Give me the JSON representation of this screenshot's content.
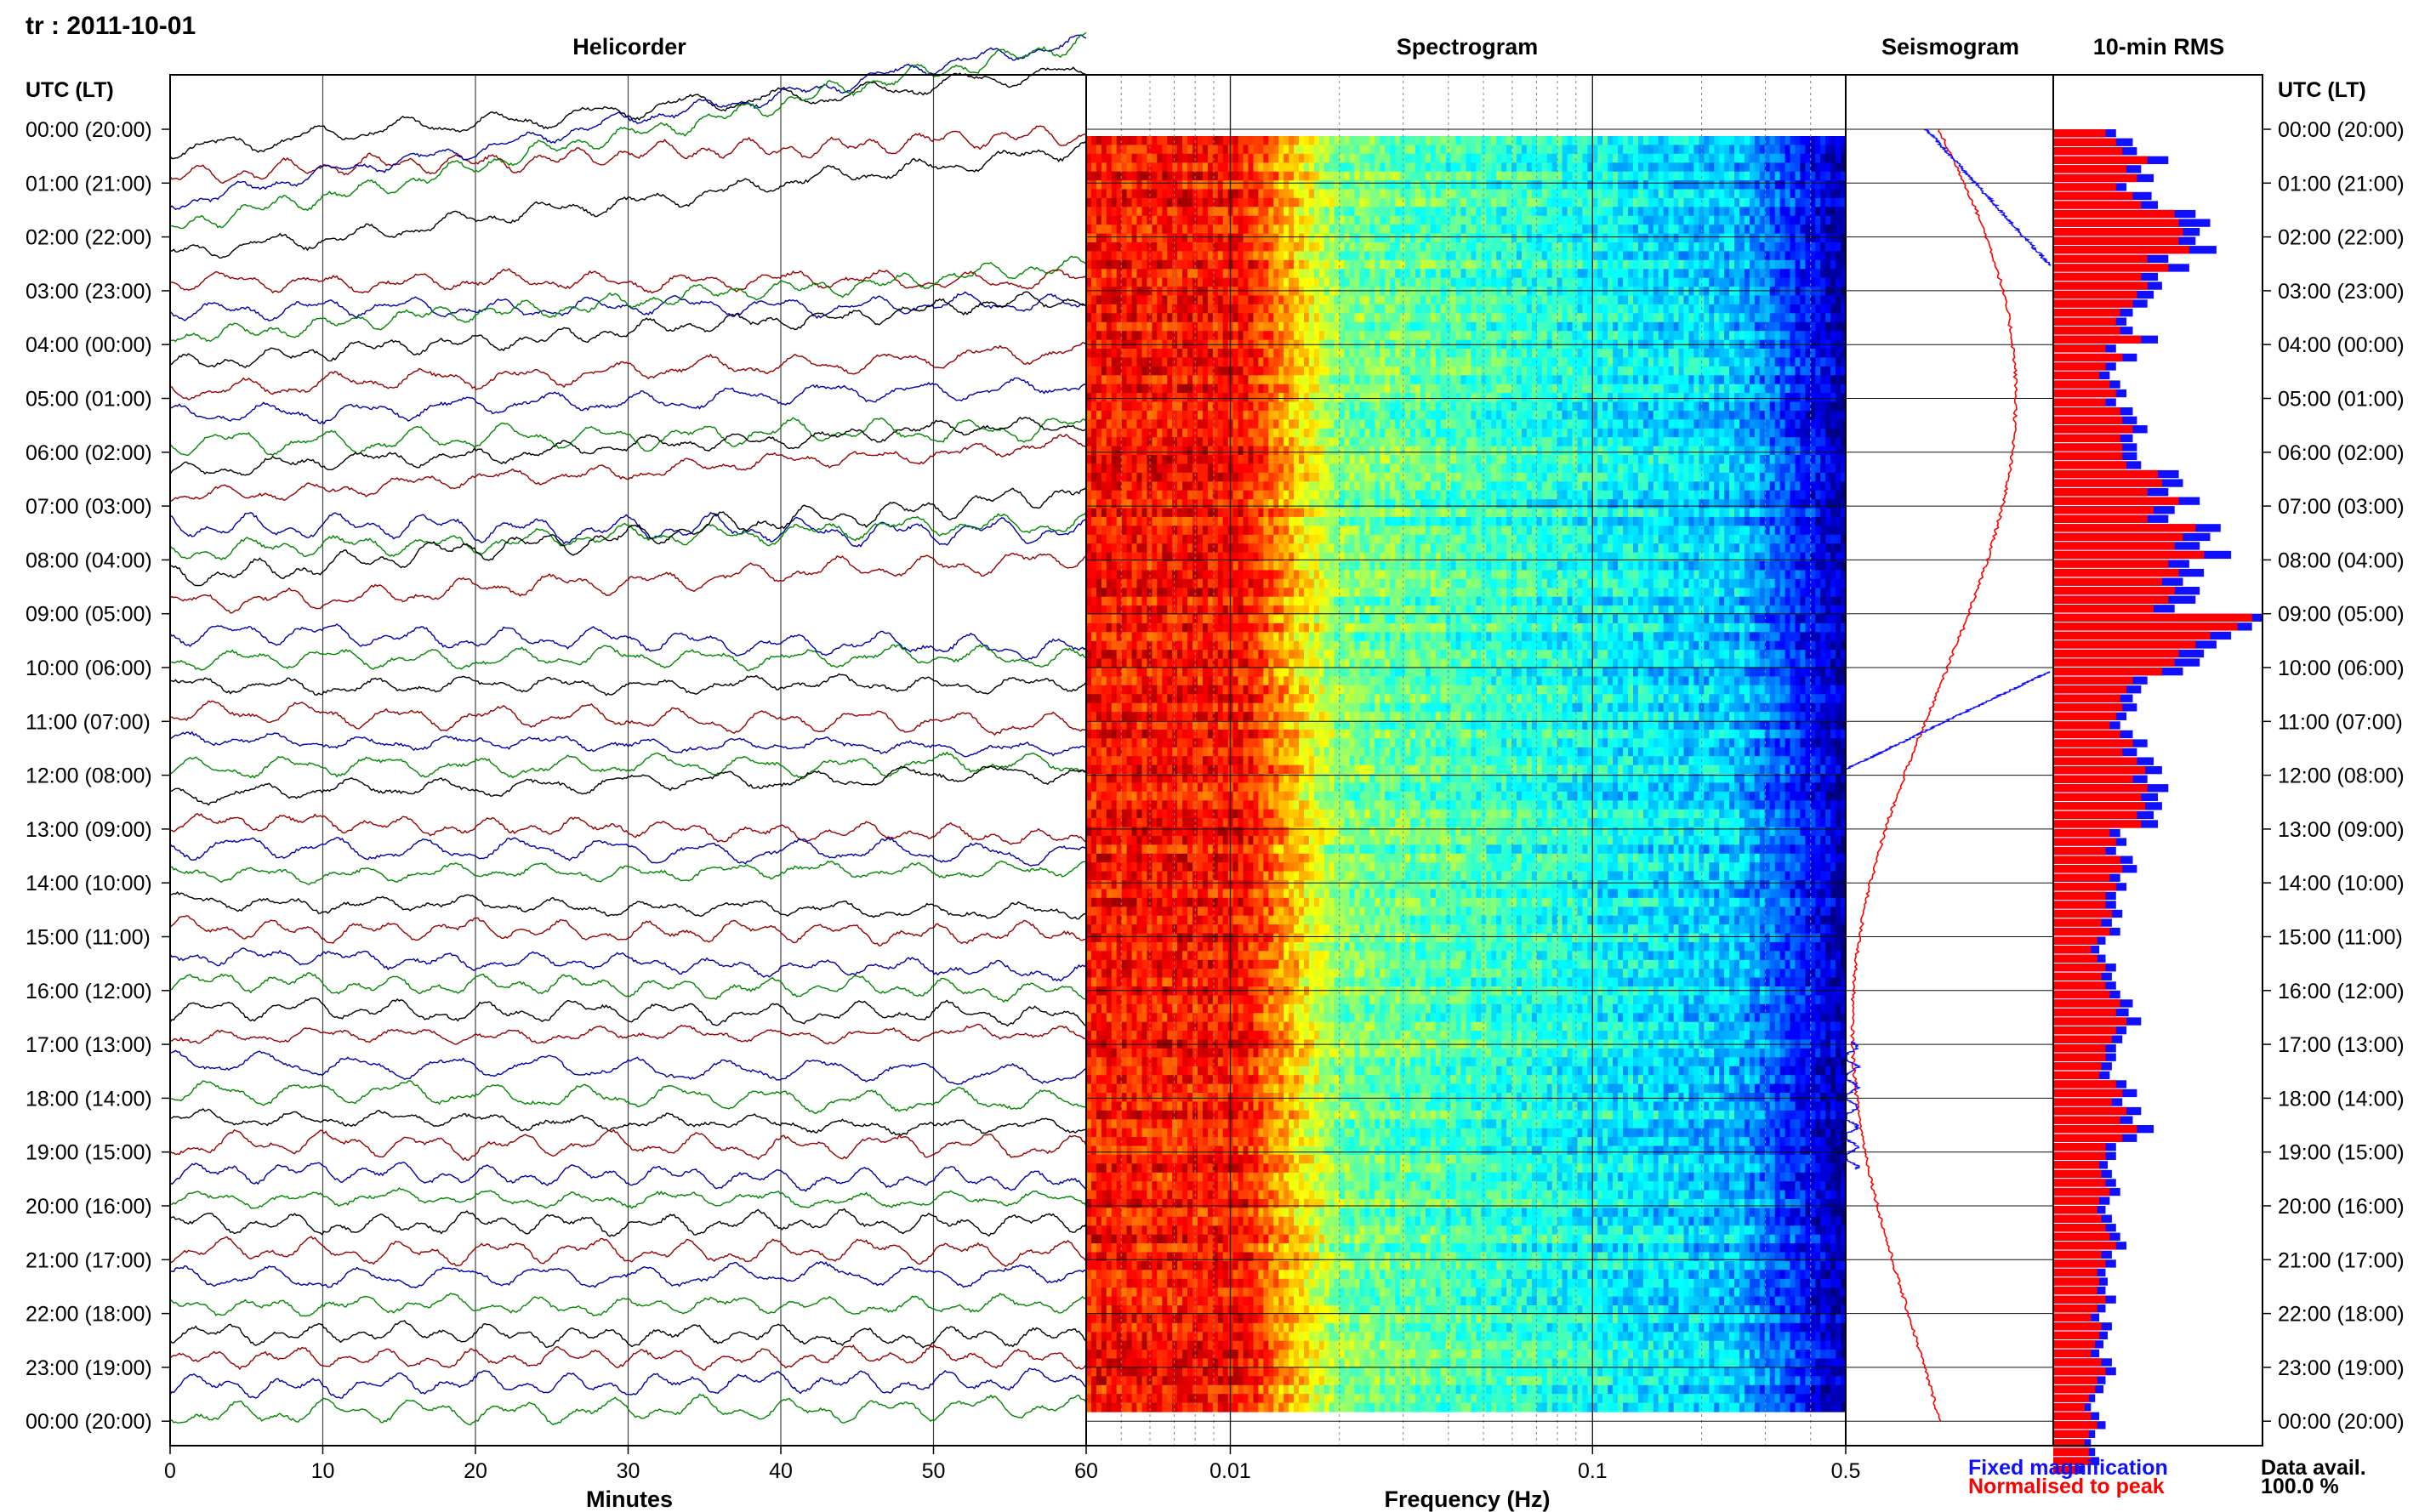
{
  "page_title": "tr : 2011-10-01",
  "axis_time_header_left": "UTC (LT)",
  "axis_time_header_right": "UTC (LT)",
  "panels": {
    "helicorder": "Helicorder",
    "spectrogram": "Spectrogram",
    "seismogram": "Seismogram",
    "rms": "10-min RMS"
  },
  "x_labels": {
    "helicorder": "Minutes",
    "spectrogram": "Frequency (Hz)"
  },
  "legend": {
    "fixed": "Fixed magnification",
    "normalised": "Normalised to peak",
    "fixed_color": "#1010ff",
    "normalised_color": "#ff0000"
  },
  "data_availability": {
    "label": "Data avail.",
    "value": "100.0 %"
  },
  "chart_data": [
    {
      "type": "line",
      "title": "Helicorder",
      "xlabel": "Minutes",
      "xlim": [
        0,
        60
      ],
      "x_ticks": [
        "0",
        "10",
        "20",
        "30",
        "40",
        "50",
        "60"
      ],
      "row_labels": [
        "00:00 (20:00)",
        "01:00 (21:00)",
        "02:00 (22:00)",
        "03:00 (23:00)",
        "04:00 (00:00)",
        "05:00 (01:00)",
        "06:00 (02:00)",
        "07:00 (03:00)",
        "08:00 (04:00)",
        "09:00 (05:00)",
        "10:00 (06:00)",
        "11:00 (07:00)",
        "12:00 (08:00)",
        "13:00 (09:00)",
        "14:00 (10:00)",
        "15:00 (11:00)",
        "16:00 (12:00)",
        "17:00 (13:00)",
        "18:00 (14:00)",
        "19:00 (15:00)",
        "20:00 (16:00)",
        "21:00 (17:00)",
        "22:00 (18:00)",
        "23:00 (19:00)",
        "00:00 (20:00)"
      ],
      "trace_colors": [
        "#000000",
        "#990000",
        "#0000aa",
        "#008800"
      ],
      "trace_drift_rows": [
        1.4,
        0.75,
        3.0,
        3.5,
        2.0,
        0.05,
        0.1,
        1.3,
        1.2,
        0.7,
        0.6,
        0.3,
        0.9,
        1.0,
        -0.15,
        0.55,
        1.6,
        0.9,
        -0.3,
        0.05,
        0.05,
        -0.2,
        -0.15,
        0.05,
        0.4,
        -0.3,
        -0.1,
        0.1,
        -0.2,
        -0.1,
        -0.3,
        -0.15,
        -0.1,
        0.05,
        -0.2,
        -0.25,
        -0.2,
        -0.05,
        -0.2,
        -0.05,
        0.05,
        0.0,
        0.1,
        0.0,
        -0.1,
        0.05,
        0.1,
        0.1
      ]
    },
    {
      "type": "heatmap",
      "title": "Spectrogram",
      "xlabel": "Frequency (Hz)",
      "x_scale": "log",
      "xlim": [
        0.004,
        0.5
      ],
      "x_tick_labels": [
        "0.01",
        "0.1",
        "0.5"
      ],
      "colormap": "jet"
    },
    {
      "type": "line",
      "title": "Seismogram",
      "series": [
        {
          "name": "Fixed magnification",
          "color": "#1010ff",
          "kind": "fixed"
        },
        {
          "name": "Normalised to peak",
          "color": "#ff0000",
          "kind": "normalised"
        }
      ]
    },
    {
      "type": "bar",
      "title": "10-min RMS",
      "orientation": "horizontal",
      "bins_per_hour": 6,
      "series": [
        {
          "name": "Fixed magnification",
          "color": "#1010ff",
          "values": [
            0.3,
            0.38,
            0.4,
            0.55,
            0.42,
            0.48,
            0.35,
            0.47,
            0.5,
            0.68,
            0.75,
            0.7,
            0.68,
            0.78,
            0.55,
            0.65,
            0.5,
            0.52,
            0.48,
            0.45,
            0.38,
            0.35,
            0.38,
            0.5,
            0.3,
            0.4,
            0.3,
            0.27,
            0.32,
            0.35,
            0.3,
            0.38,
            0.4,
            0.45,
            0.38,
            0.4,
            0.4,
            0.42,
            0.6,
            0.62,
            0.55,
            0.7,
            0.58,
            0.55,
            0.8,
            0.75,
            0.7,
            0.85,
            0.65,
            0.72,
            0.62,
            0.7,
            0.68,
            0.58,
            1.0,
            0.95,
            0.85,
            0.78,
            0.72,
            0.7,
            0.62,
            0.45,
            0.42,
            0.38,
            0.4,
            0.35,
            0.32,
            0.38,
            0.45,
            0.4,
            0.48,
            0.52,
            0.45,
            0.55,
            0.5,
            0.52,
            0.48,
            0.5,
            0.32,
            0.35,
            0.3,
            0.38,
            0.4,
            0.32,
            0.35,
            0.3,
            0.3,
            0.33,
            0.28,
            0.32,
            0.25,
            0.22,
            0.25,
            0.3,
            0.28,
            0.3,
            0.32,
            0.38,
            0.36,
            0.42,
            0.35,
            0.33,
            0.3,
            0.3,
            0.28,
            0.27,
            0.35,
            0.4,
            0.33,
            0.42,
            0.38,
            0.48,
            0.4,
            0.3,
            0.3,
            0.26,
            0.28,
            0.3,
            0.32,
            0.27,
            0.25,
            0.28,
            0.3,
            0.32,
            0.35,
            0.28,
            0.3,
            0.25,
            0.26,
            0.25,
            0.3,
            0.25,
            0.22,
            0.28,
            0.26,
            0.24,
            0.22,
            0.28,
            0.3,
            0.25,
            0.24,
            0.2,
            0.18,
            0.22,
            0.25,
            0.2,
            0.18,
            0.2,
            0.22,
            0.15
          ]
        },
        {
          "name": "Normalised to peak",
          "color": "#ff0000",
          "values": [
            0.25,
            0.3,
            0.33,
            0.45,
            0.35,
            0.4,
            0.3,
            0.38,
            0.42,
            0.58,
            0.6,
            0.62,
            0.6,
            0.65,
            0.45,
            0.55,
            0.42,
            0.45,
            0.4,
            0.38,
            0.32,
            0.3,
            0.32,
            0.42,
            0.25,
            0.33,
            0.25,
            0.22,
            0.27,
            0.3,
            0.25,
            0.32,
            0.33,
            0.38,
            0.32,
            0.33,
            0.33,
            0.35,
            0.5,
            0.52,
            0.45,
            0.6,
            0.48,
            0.45,
            0.68,
            0.62,
            0.58,
            0.72,
            0.55,
            0.6,
            0.52,
            0.58,
            0.55,
            0.48,
            0.95,
            0.88,
            0.75,
            0.68,
            0.6,
            0.58,
            0.52,
            0.38,
            0.35,
            0.32,
            0.33,
            0.3,
            0.27,
            0.32,
            0.38,
            0.33,
            0.4,
            0.44,
            0.38,
            0.45,
            0.42,
            0.44,
            0.4,
            0.42,
            0.27,
            0.3,
            0.25,
            0.32,
            0.33,
            0.27,
            0.3,
            0.25,
            0.25,
            0.28,
            0.23,
            0.27,
            0.21,
            0.18,
            0.21,
            0.25,
            0.23,
            0.25,
            0.27,
            0.32,
            0.3,
            0.35,
            0.3,
            0.28,
            0.25,
            0.25,
            0.23,
            0.22,
            0.3,
            0.33,
            0.28,
            0.35,
            0.32,
            0.4,
            0.33,
            0.25,
            0.25,
            0.22,
            0.23,
            0.25,
            0.27,
            0.22,
            0.21,
            0.23,
            0.25,
            0.27,
            0.3,
            0.23,
            0.25,
            0.21,
            0.22,
            0.21,
            0.25,
            0.21,
            0.18,
            0.23,
            0.22,
            0.2,
            0.18,
            0.23,
            0.25,
            0.21,
            0.2,
            0.17,
            0.15,
            0.18,
            0.21,
            0.17,
            0.15,
            0.17,
            0.18,
            0.12
          ]
        }
      ]
    }
  ]
}
